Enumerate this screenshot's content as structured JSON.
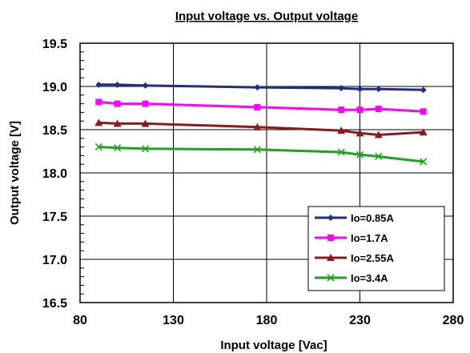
{
  "chart_data": {
    "type": "line",
    "title": "Input voltage vs. Output voltage",
    "xlabel": "Input voltage [Vac]",
    "ylabel": "Output voltage [V]",
    "xlim": [
      80,
      280
    ],
    "ylim": [
      16.5,
      19.5
    ],
    "xticks": [
      "80",
      "130",
      "180",
      "230",
      "280"
    ],
    "yticks": [
      "16.5",
      "17.0",
      "17.5",
      "18.0",
      "18.5",
      "19.0",
      "19.5"
    ],
    "grid": true,
    "legend_position": "bottom-right",
    "x": [
      90,
      100,
      115,
      175,
      220,
      230,
      240,
      264
    ],
    "series": [
      {
        "name": "Io=0.85A",
        "color": "#1f2f86",
        "marker": "diamond",
        "values": [
          19.02,
          19.02,
          19.01,
          18.99,
          18.98,
          18.97,
          18.97,
          18.96
        ]
      },
      {
        "name": "Io=1.7A",
        "color": "#ff00ff",
        "marker": "square",
        "values": [
          18.82,
          18.8,
          18.8,
          18.76,
          18.73,
          18.73,
          18.74,
          18.71
        ]
      },
      {
        "name": "Io=2.55A",
        "color": "#8b1a1a",
        "marker": "triangle",
        "values": [
          18.58,
          18.57,
          18.57,
          18.53,
          18.49,
          18.46,
          18.44,
          18.47
        ]
      },
      {
        "name": "Io=3.4A",
        "color": "#1aa51a",
        "marker": "x",
        "values": [
          18.3,
          18.29,
          18.28,
          18.27,
          18.24,
          18.21,
          18.19,
          18.13
        ]
      }
    ]
  }
}
